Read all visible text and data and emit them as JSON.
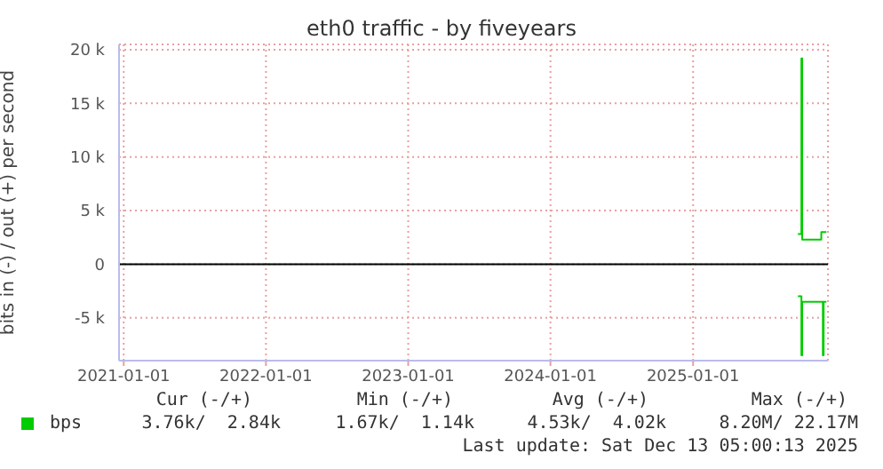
{
  "chart_data": {
    "type": "step",
    "title": "eth0 traffic - by fiveyears",
    "ylabel": "bits in (-) / out (+) per second",
    "series": [
      {
        "name": "bps",
        "color": "#00cc00",
        "x": [
          "2025-09-27",
          "2025-10-06",
          "2025-10-08",
          "2025-11-21",
          "2025-11-26",
          "2025-12-09"
        ],
        "values": [
          2800,
          19200,
          2300,
          2300,
          3000,
          3000
        ]
      },
      {
        "color": "#00cc00",
        "x": [
          "2025-09-27",
          "2025-10-06",
          "2025-10-08",
          "2025-11-21",
          "2025-11-30",
          "2025-12-02",
          "2025-12-09"
        ],
        "values": [
          -3000,
          -8500,
          -3500,
          -3500,
          -8500,
          -3500,
          -3500
        ]
      }
    ],
    "xlim": [
      "2020-12-20",
      "2025-12-13"
    ],
    "xticks": [
      "2021-01-01",
      "2022-01-01",
      "2023-01-01",
      "2024-01-01",
      "2025-01-01"
    ],
    "ylim": [
      -9000,
      20500
    ],
    "yticks": [
      {
        "value": -5000,
        "label": "-5 k"
      },
      0,
      {
        "value": 5000,
        "label": "5 k"
      },
      {
        "value": 10000,
        "label": "10 k"
      },
      {
        "value": 15000,
        "label": "15 k"
      },
      {
        "value": 20000,
        "label": "20 k"
      }
    ],
    "ref_lines": [
      {
        "axis": "y",
        "value": 0,
        "color": "#000000"
      }
    ],
    "grid": true,
    "legend": "bottom",
    "marker": "none",
    "line_style": "solid",
    "annotations": [
      "Cur (-/+)",
      "Min (-/+)",
      "Avg (-/+)",
      "Max (-/+)",
      "3.76k/  2.84k",
      "1.67k/  1.14k",
      "4.53k/  4.02k",
      "8.20M/ 22.17M",
      "Last update: Sat Dec 13 05:00:13 2025"
    ]
  }
}
